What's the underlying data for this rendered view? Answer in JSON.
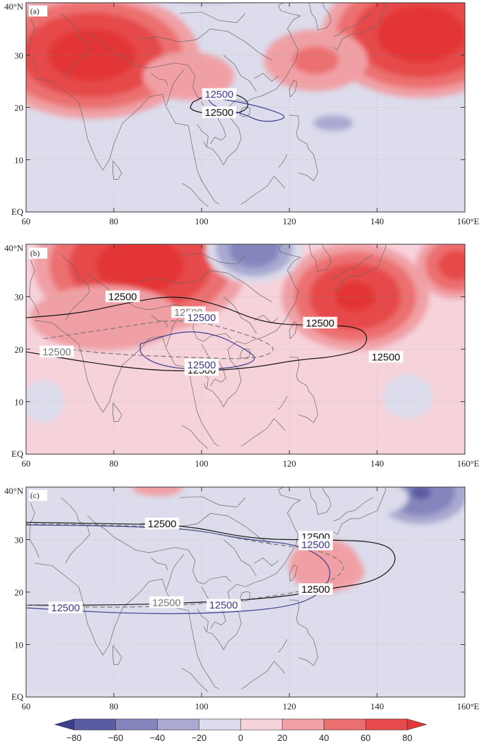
{
  "figure": {
    "panels": [
      {
        "label": "(a)",
        "contour_label": "12500"
      },
      {
        "label": "(b)",
        "contour_label": "12500"
      },
      {
        "label": "(c)",
        "contour_label": "12500"
      }
    ],
    "x_tick_labels": [
      "60",
      "80",
      "100",
      "120",
      "140",
      "160°E"
    ],
    "y_tick_labels": [
      "EQ",
      "10",
      "20",
      "30",
      "40°N"
    ]
  },
  "colors": {
    "levels": [
      "#3d3d8f",
      "#5b5ba3",
      "#8585bd",
      "#a9a9d1",
      "#dcdcec",
      "#f6d2da",
      "#f0a0a5",
      "#ec6f6f",
      "#e64a4a",
      "#e33636"
    ],
    "contour_black": "#111111",
    "contour_blue": "#3b3b8c",
    "contour_gray": "#777777",
    "coast": "#666666"
  },
  "chart_data": [
    {
      "type": "heatmap",
      "panel": "(a)",
      "x_range": [
        60,
        160
      ],
      "y_range": [
        0,
        40
      ],
      "xticks": [
        60,
        80,
        100,
        120,
        140,
        160
      ],
      "yticks": [
        0,
        10,
        20,
        30,
        40
      ],
      "background_level": -10,
      "anomalies": [
        {
          "lon": 75,
          "lat": 30,
          "value": 82,
          "rx": 26,
          "ry": 13
        },
        {
          "lon": 150,
          "lat": 34,
          "value": 85,
          "rx": 24,
          "ry": 13
        },
        {
          "lon": 126,
          "lat": 29,
          "value": 35,
          "rx": 14,
          "ry": 7
        },
        {
          "lon": 101,
          "lat": 44,
          "value": -55,
          "rx": 22,
          "ry": 6
        },
        {
          "lon": 130,
          "lat": 17,
          "value": -35,
          "rx": 12,
          "ry": 4
        },
        {
          "lon": 97,
          "lat": 26,
          "value": 15,
          "rx": 18,
          "ry": 8
        }
      ],
      "contours": [
        {
          "color": "black",
          "points": [
            [
              98,
              21
            ],
            [
              104,
              23.5
            ],
            [
              111,
              21.5
            ],
            [
              110,
              19
            ],
            [
              103,
              18.5
            ],
            [
              97,
              19.5
            ],
            [
              98,
              21
            ]
          ]
        },
        {
          "color": "blue",
          "points": [
            [
              101,
              22
            ],
            [
              109,
              21
            ],
            [
              116,
              19.5
            ],
            [
              120,
              18
            ],
            [
              114,
              17
            ],
            [
              109,
              19
            ],
            [
              103,
              20
            ],
            [
              101,
              22
            ]
          ]
        }
      ],
      "contour_labels": [
        {
          "lon": 104,
          "lat": 22.5,
          "color": "blue"
        },
        {
          "lon": 104,
          "lat": 19,
          "color": "black"
        }
      ]
    },
    {
      "type": "heatmap",
      "panel": "(b)",
      "x_range": [
        60,
        160
      ],
      "y_range": [
        0,
        40
      ],
      "xticks": [
        60,
        80,
        100,
        120,
        140,
        160
      ],
      "yticks": [
        0,
        10,
        20,
        30,
        40
      ],
      "background_level": 10,
      "anomalies": [
        {
          "lon": 86,
          "lat": 36,
          "value": 82,
          "rx": 26,
          "ry": 14
        },
        {
          "lon": 135,
          "lat": 30,
          "value": 75,
          "rx": 18,
          "ry": 11
        },
        {
          "lon": 158,
          "lat": 36,
          "value": 60,
          "rx": 10,
          "ry": 7
        },
        {
          "lon": 112,
          "lat": 39,
          "value": -65,
          "rx": 12,
          "ry": 7
        },
        {
          "lon": 147,
          "lat": 11,
          "value": -20,
          "rx": 8,
          "ry": 6
        },
        {
          "lon": 64,
          "lat": 10,
          "value": -15,
          "rx": 8,
          "ry": 7
        },
        {
          "lon": 78,
          "lat": 26,
          "value": 25,
          "rx": 22,
          "ry": 8
        }
      ],
      "contours": [
        {
          "color": "black",
          "points": [
            [
              60,
              26
            ],
            [
              72,
              26.8
            ],
            [
              84,
              29
            ],
            [
              94,
              30.3
            ],
            [
              104,
              28.5
            ],
            [
              114,
              25
            ],
            [
              125,
              24.5
            ],
            [
              134,
              24.5
            ],
            [
              138,
              23
            ],
            [
              137,
              20
            ],
            [
              130,
              18.5
            ],
            [
              122,
              18
            ],
            [
              112,
              16.5
            ],
            [
              100,
              15.8
            ],
            [
              88,
              16
            ],
            [
              74,
              17.5
            ],
            [
              60,
              19.5
            ]
          ]
        },
        {
          "color": "blue",
          "points": [
            [
              86,
              21
            ],
            [
              95,
              23.5
            ],
            [
              103,
              23
            ],
            [
              110,
              20
            ],
            [
              113,
              18
            ],
            [
              108,
              16.5
            ],
            [
              98,
              16
            ],
            [
              90,
              17
            ],
            [
              86,
              19
            ],
            [
              86,
              21
            ]
          ]
        },
        {
          "color": "gray",
          "dashed": true,
          "points": [
            [
              64,
              22
            ],
            [
              80,
              24
            ],
            [
              96,
              26
            ],
            [
              110,
              23
            ],
            [
              118,
              20
            ],
            [
              112,
              18
            ],
            [
              96,
              18.5
            ],
            [
              80,
              19
            ],
            [
              64,
              20.5
            ]
          ]
        }
      ],
      "contour_labels": [
        {
          "lon": 82,
          "lat": 30,
          "color": "black"
        },
        {
          "lon": 127,
          "lat": 25,
          "color": "black"
        },
        {
          "lon": 142,
          "lat": 18.5,
          "color": "black"
        },
        {
          "lon": 100,
          "lat": 16,
          "color": "black"
        },
        {
          "lon": 97,
          "lat": 27,
          "color": "gray"
        },
        {
          "lon": 100,
          "lat": 26,
          "color": "blue"
        },
        {
          "lon": 100,
          "lat": 17,
          "color": "blue"
        },
        {
          "lon": 67,
          "lat": 19.5,
          "color": "gray"
        }
      ]
    },
    {
      "type": "heatmap",
      "panel": "(c)",
      "x_range": [
        60,
        160
      ],
      "y_range": [
        0,
        40
      ],
      "xticks": [
        60,
        80,
        100,
        120,
        140,
        160
      ],
      "yticks": [
        0,
        10,
        20,
        30,
        40
      ],
      "background_level": -10,
      "anomalies": [
        {
          "lon": 150,
          "lat": 39,
          "value": -72,
          "rx": 14,
          "ry": 8
        },
        {
          "lon": 134,
          "lat": 38,
          "value": -30,
          "rx": 16,
          "ry": 5
        },
        {
          "lon": 62,
          "lat": 31,
          "value": -30,
          "rx": 5,
          "ry": 5
        },
        {
          "lon": 92,
          "lat": 30,
          "value": -30,
          "rx": 3,
          "ry": 2
        },
        {
          "lon": 131,
          "lat": 24,
          "value": 40,
          "rx": 7,
          "ry": 4
        },
        {
          "lon": 128,
          "lat": 25,
          "value": 15,
          "rx": 14,
          "ry": 9
        },
        {
          "lon": 90,
          "lat": 40,
          "value": 15,
          "rx": 10,
          "ry": 3
        }
      ],
      "contours": [
        {
          "color": "black",
          "points": [
            [
              60,
              33.3
            ],
            [
              80,
              33
            ],
            [
              96,
              32.8
            ],
            [
              112,
              30
            ],
            [
              128,
              30
            ],
            [
              142,
              29.5
            ],
            [
              145,
              26
            ],
            [
              140,
              22
            ],
            [
              128,
              20.5
            ],
            [
              118,
              19
            ],
            [
              100,
              18
            ],
            [
              80,
              17.5
            ],
            [
              60,
              17.5
            ]
          ]
        },
        {
          "color": "blue",
          "points": [
            [
              60,
              32.8
            ],
            [
              80,
              32.6
            ],
            [
              98,
              32
            ],
            [
              110,
              30
            ],
            [
              123,
              29
            ],
            [
              130,
              25
            ],
            [
              128,
              20
            ],
            [
              120,
              17
            ],
            [
              100,
              15.8
            ],
            [
              80,
              16
            ],
            [
              60,
              17
            ]
          ]
        },
        {
          "color": "gray",
          "dashed": true,
          "points": [
            [
              60,
              33
            ],
            [
              96,
              32.5
            ],
            [
              112,
              29.5
            ],
            [
              128,
              28
            ],
            [
              134,
              24.5
            ],
            [
              126,
              20.5
            ],
            [
              110,
              18.5
            ],
            [
              96,
              17.5
            ],
            [
              80,
              17
            ],
            [
              60,
              17.5
            ]
          ]
        }
      ],
      "contour_labels": [
        {
          "lon": 91,
          "lat": 33,
          "color": "black"
        },
        {
          "lon": 126,
          "lat": 30.5,
          "color": "black"
        },
        {
          "lon": 126,
          "lat": 20.5,
          "color": "black"
        },
        {
          "lon": 126,
          "lat": 29,
          "color": "blue"
        },
        {
          "lon": 105,
          "lat": 17.5,
          "color": "blue"
        },
        {
          "lon": 69,
          "lat": 17,
          "color": "blue"
        },
        {
          "lon": 92,
          "lat": 18,
          "color": "gray"
        }
      ]
    }
  ],
  "colorbar": {
    "levels": [
      -80,
      -60,
      -40,
      -20,
      0,
      20,
      40,
      60,
      80
    ],
    "labels": [
      "−80",
      "−60",
      "−40",
      "−20",
      "0",
      "20",
      "40",
      "60",
      "80"
    ]
  }
}
